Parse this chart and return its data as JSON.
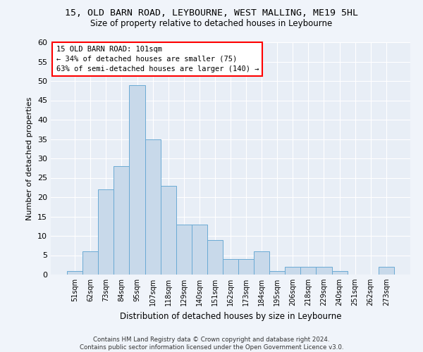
{
  "title1": "15, OLD BARN ROAD, LEYBOURNE, WEST MALLING, ME19 5HL",
  "title2": "Size of property relative to detached houses in Leybourne",
  "xlabel": "Distribution of detached houses by size in Leybourne",
  "ylabel": "Number of detached properties",
  "bar_color": "#c8d9ea",
  "bar_edge_color": "#6aaad4",
  "background_color": "#e8eef6",
  "fig_facecolor": "#f0f4fa",
  "categories": [
    "51sqm",
    "62sqm",
    "73sqm",
    "84sqm",
    "95sqm",
    "107sqm",
    "118sqm",
    "129sqm",
    "140sqm",
    "151sqm",
    "162sqm",
    "173sqm",
    "184sqm",
    "195sqm",
    "206sqm",
    "218sqm",
    "229sqm",
    "240sqm",
    "251sqm",
    "262sqm",
    "273sqm"
  ],
  "values": [
    1,
    6,
    22,
    28,
    49,
    35,
    23,
    13,
    13,
    9,
    4,
    4,
    6,
    1,
    2,
    2,
    2,
    1,
    0,
    0,
    2
  ],
  "ylim": [
    0,
    60
  ],
  "yticks": [
    0,
    5,
    10,
    15,
    20,
    25,
    30,
    35,
    40,
    45,
    50,
    55,
    60
  ],
  "annotation_box_text": "15 OLD BARN ROAD: 101sqm\n← 34% of detached houses are smaller (75)\n63% of semi-detached houses are larger (140) →",
  "footer": "Contains HM Land Registry data © Crown copyright and database right 2024.\nContains public sector information licensed under the Open Government Licence v3.0."
}
